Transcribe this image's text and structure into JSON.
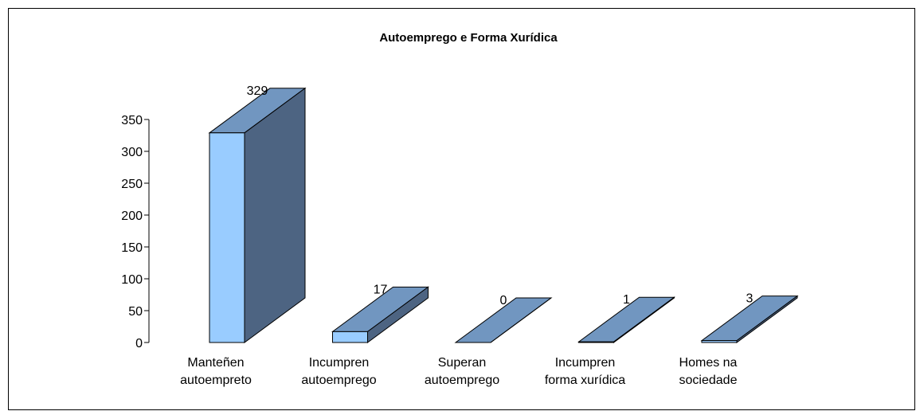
{
  "chart_data": {
    "type": "bar3d",
    "title": "Autoemprego e Forma Xurídica",
    "categories": [
      "Manteñen\nautoempreto",
      "Incumpren\nautoemprego",
      "Superan\nautoemprego",
      "Incumpren\nforma xurídica",
      "Homes na\nsociedade"
    ],
    "values": [
      329,
      17,
      0,
      1,
      3
    ],
    "color": "#99ccff",
    "top_color": "#7196c0",
    "side_color": "#4d6482",
    "ylim": [
      0,
      350
    ],
    "yticks": [
      0,
      50,
      100,
      150,
      200,
      250,
      300,
      350
    ]
  }
}
